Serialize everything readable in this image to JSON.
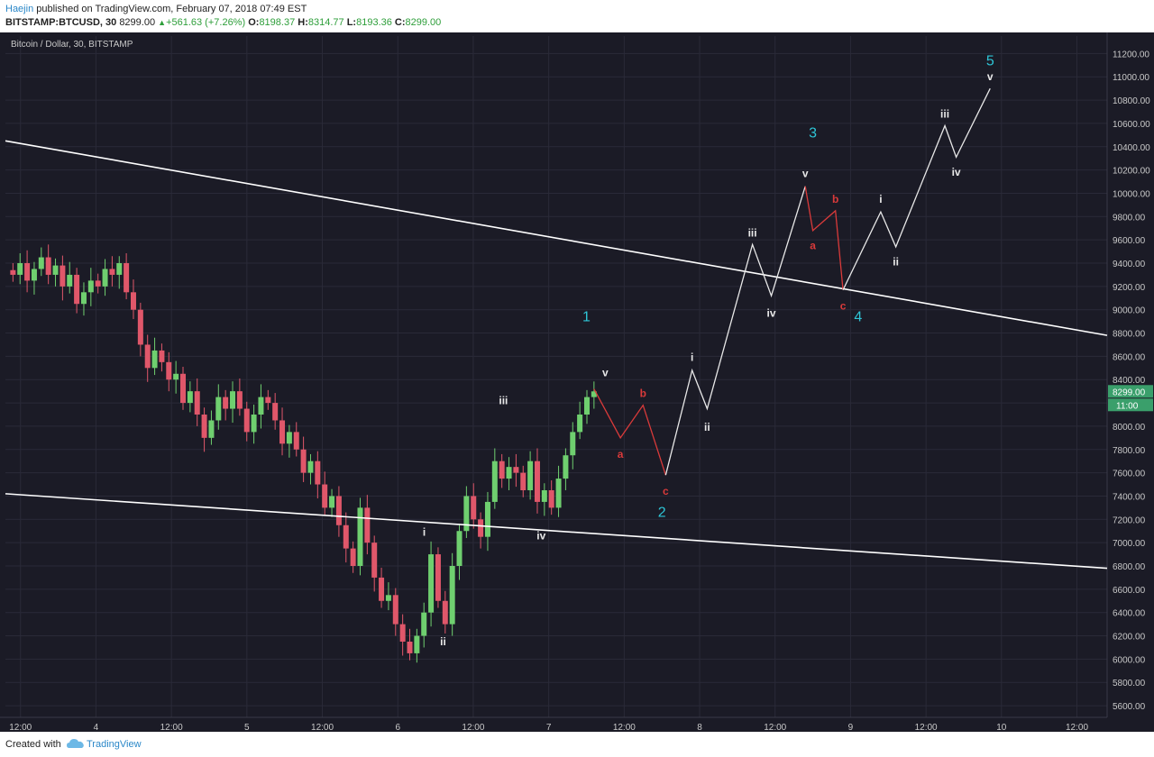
{
  "header": {
    "author": "Haejin",
    "published": "published on TradingView.com, February 07, 2018 07:49 EST",
    "symbol": "BITSTAMP:BTCUSD, 30",
    "last": "8299.00",
    "change": "+561.63 (+7.26%)",
    "o_label": "O:",
    "o_value": "8198.37",
    "h_label": "H:",
    "h_value": "8314.77",
    "l_label": "L:",
    "l_value": "8193.36",
    "c_label": "C:",
    "c_value": "8299.00"
  },
  "footer": {
    "created_with": "Created with",
    "brand": "TradingView"
  },
  "colors": {
    "background": "#1b1b26",
    "grid": "#2a2a38",
    "axis_text": "#c9c9c9",
    "candle_up": "#6fcf6f",
    "candle_down": "#e0576a",
    "trendline": "#ffffff",
    "wave_white": "#e8e8e8",
    "wave_red": "#d93a3a",
    "label_cyan": "#2ec5d6",
    "price_badge": "#3a9f6b",
    "author": "#2a87c8"
  },
  "chart_data": {
    "type": "line",
    "title": "Bitcoin / Dollar, 30, BITSTAMP",
    "price_badge": "8299.00",
    "time_badge": "11:00",
    "ylim": [
      5500,
      11350
    ],
    "yticks": [
      5600,
      5800,
      6000,
      6200,
      6400,
      6600,
      6800,
      7000,
      7200,
      7400,
      7600,
      7800,
      8000,
      8200,
      8400,
      8600,
      8800,
      9000,
      9200,
      9400,
      9600,
      9800,
      10000,
      10200,
      10400,
      10600,
      10800,
      11000,
      11200
    ],
    "xlim": [
      0,
      146
    ],
    "xticks": [
      {
        "t": 2,
        "label": "12:00"
      },
      {
        "t": 12,
        "label": "4"
      },
      {
        "t": 22,
        "label": "12:00"
      },
      {
        "t": 32,
        "label": "5"
      },
      {
        "t": 42,
        "label": "12:00"
      },
      {
        "t": 52,
        "label": "6"
      },
      {
        "t": 62,
        "label": "12:00"
      },
      {
        "t": 72,
        "label": "7"
      },
      {
        "t": 82,
        "label": "12:00"
      },
      {
        "t": 92,
        "label": "8"
      },
      {
        "t": 102,
        "label": "12:00"
      },
      {
        "t": 112,
        "label": "9"
      },
      {
        "t": 122,
        "label": "12:00"
      },
      {
        "t": 132,
        "label": "10"
      },
      {
        "t": 142,
        "label": "12:00"
      }
    ],
    "candles_close": [
      9300,
      9400,
      9250,
      9350,
      9450,
      9300,
      9380,
      9200,
      9300,
      9050,
      9150,
      9250,
      9200,
      9350,
      9300,
      9400,
      9150,
      9000,
      8700,
      8500,
      8650,
      8550,
      8400,
      8450,
      8200,
      8300,
      8100,
      7900,
      8050,
      8250,
      8150,
      8300,
      8150,
      7950,
      8100,
      8250,
      8200,
      8050,
      7850,
      7950,
      7800,
      7600,
      7700,
      7500,
      7300,
      7400,
      7150,
      6950,
      6800,
      7300,
      7000,
      6700,
      6500,
      6550,
      6300,
      6150,
      6050,
      6200,
      6400,
      6900,
      6500,
      6300,
      6800,
      7100,
      7400,
      7200,
      7050,
      7350,
      7700,
      7550,
      7650,
      7600,
      7450,
      7700,
      7350,
      7450,
      7300,
      7550,
      7750,
      7950,
      8100,
      8250,
      8299
    ],
    "candles_x_start": 1,
    "candles_x_end": 78,
    "trendlines": [
      {
        "name": "upper",
        "from": [
          0,
          10450
        ],
        "to": [
          146,
          8780
        ]
      },
      {
        "name": "lower",
        "from": [
          0,
          7420
        ],
        "to": [
          146,
          6780
        ]
      }
    ],
    "series": [
      {
        "name": "red_abc_wave2",
        "color": "red",
        "points": [
          [
            78,
            8320
          ],
          [
            81.5,
            7900
          ],
          [
            84.5,
            8180
          ],
          [
            87.5,
            7580
          ]
        ]
      },
      {
        "name": "white_impulse",
        "color": "white",
        "points": [
          [
            87.5,
            7580
          ],
          [
            91,
            8480
          ],
          [
            93,
            8150
          ],
          [
            99,
            9560
          ],
          [
            101.5,
            9120
          ],
          [
            106,
            10060
          ]
        ]
      },
      {
        "name": "red_abc_wave4",
        "color": "red",
        "points": [
          [
            106,
            10060
          ],
          [
            107,
            9680
          ],
          [
            110,
            9850
          ],
          [
            111,
            9170
          ]
        ]
      },
      {
        "name": "white_wave5",
        "color": "white",
        "points": [
          [
            111,
            9170
          ],
          [
            116,
            9840
          ],
          [
            118,
            9540
          ],
          [
            124.5,
            10580
          ],
          [
            126,
            10310
          ],
          [
            130.5,
            10900
          ]
        ]
      }
    ],
    "annotations": [
      {
        "text": "1",
        "x": 77,
        "y": 8900,
        "color": "cyan",
        "size": "big"
      },
      {
        "text": "2",
        "x": 87,
        "y": 7220,
        "color": "cyan",
        "size": "big"
      },
      {
        "text": "3",
        "x": 107,
        "y": 10480,
        "color": "cyan",
        "size": "big"
      },
      {
        "text": "4",
        "x": 113,
        "y": 8900,
        "color": "cyan",
        "size": "big"
      },
      {
        "text": "5",
        "x": 130.5,
        "y": 11100,
        "color": "cyan",
        "size": "big"
      },
      {
        "text": "i",
        "x": 55.5,
        "y": 7060,
        "color": "white"
      },
      {
        "text": "ii",
        "x": 58,
        "y": 6120,
        "color": "white"
      },
      {
        "text": "iii",
        "x": 66,
        "y": 8190,
        "color": "white"
      },
      {
        "text": "iv",
        "x": 71,
        "y": 7030,
        "color": "white"
      },
      {
        "text": "v",
        "x": 79.5,
        "y": 8430,
        "color": "white"
      },
      {
        "text": "a",
        "x": 81.5,
        "y": 7730,
        "color": "red"
      },
      {
        "text": "b",
        "x": 84.5,
        "y": 8250,
        "color": "red"
      },
      {
        "text": "c",
        "x": 87.5,
        "y": 7410,
        "color": "red"
      },
      {
        "text": "i",
        "x": 91,
        "y": 8560,
        "color": "white"
      },
      {
        "text": "ii",
        "x": 93,
        "y": 7960,
        "color": "white"
      },
      {
        "text": "iii",
        "x": 99,
        "y": 9630,
        "color": "white"
      },
      {
        "text": "iv",
        "x": 101.5,
        "y": 8940,
        "color": "white"
      },
      {
        "text": "v",
        "x": 106,
        "y": 10140,
        "color": "white"
      },
      {
        "text": "a",
        "x": 107,
        "y": 9520,
        "color": "red"
      },
      {
        "text": "b",
        "x": 110,
        "y": 9920,
        "color": "red"
      },
      {
        "text": "c",
        "x": 111,
        "y": 9000,
        "color": "red"
      },
      {
        "text": "i",
        "x": 116,
        "y": 9920,
        "color": "white"
      },
      {
        "text": "ii",
        "x": 118,
        "y": 9380,
        "color": "white"
      },
      {
        "text": "iii",
        "x": 124.5,
        "y": 10650,
        "color": "white"
      },
      {
        "text": "iv",
        "x": 126,
        "y": 10150,
        "color": "white"
      },
      {
        "text": "v",
        "x": 130.5,
        "y": 10970,
        "color": "white"
      }
    ]
  }
}
